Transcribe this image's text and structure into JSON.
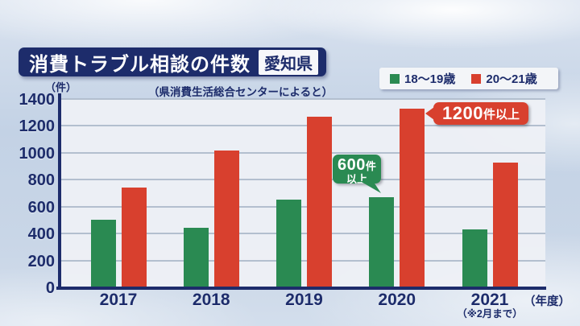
{
  "header": {
    "title": "消費トラブル相談の件数",
    "badge": "愛知県"
  },
  "source_note": "（県消費生活総合センターによると）",
  "colors": {
    "navy": "#1d2c6b",
    "green": "#2a8a52",
    "red": "#d8402e",
    "plot_bg": "#eef0f4",
    "gridline": "#b3bfcf",
    "background": "#c9d7e8"
  },
  "chart_data": {
    "type": "bar",
    "title": "消費トラブル相談の件数（愛知県）",
    "source": "県消費生活総合センターによると",
    "unit_label": "（件）",
    "x_axis_suffix": "（年度）",
    "categories": [
      "2017",
      "2018",
      "2019",
      "2020",
      "2021"
    ],
    "category_footnote": {
      "index": 4,
      "text": "（※2月まで）"
    },
    "series": [
      {
        "name": "18〜19歳",
        "color": "#2a8a52",
        "values": [
          500,
          440,
          650,
          670,
          430
        ]
      },
      {
        "name": "20〜21歳",
        "color": "#d8402e",
        "values": [
          740,
          1020,
          1270,
          1330,
          930
        ]
      }
    ],
    "ylim": [
      0,
      1400
    ],
    "ytick_step": 200,
    "grid": true,
    "legend_position": "top-right",
    "annotations": [
      {
        "category": "2020",
        "series": "18〜19歳",
        "big": "600",
        "small": "件",
        "line2": "以上",
        "color": "#2a8a52"
      },
      {
        "category": "2020",
        "series": "20〜21歳",
        "big": "1200",
        "small": "件以上",
        "line2": "",
        "color": "#d8402e"
      }
    ]
  }
}
